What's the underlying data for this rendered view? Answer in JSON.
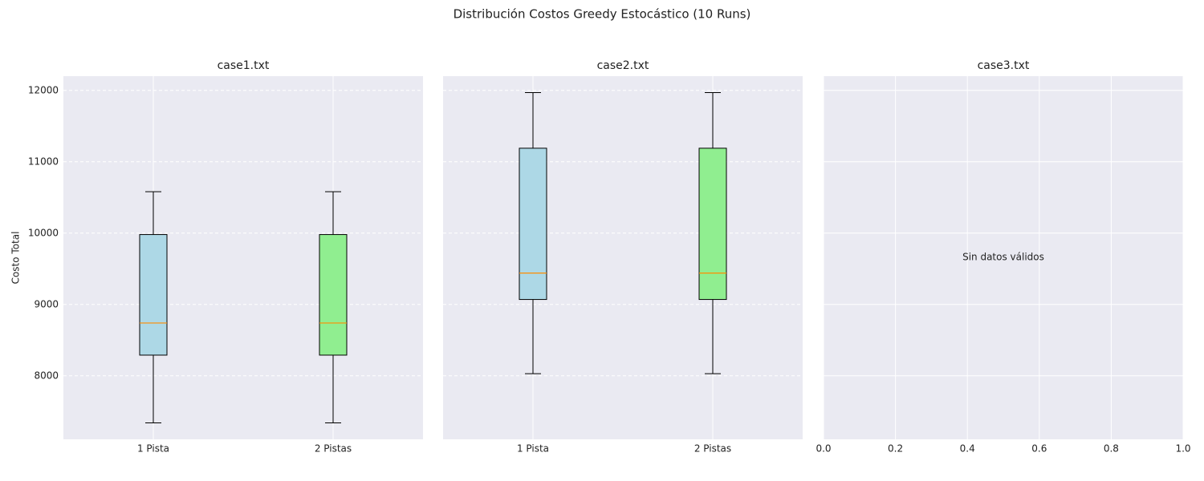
{
  "title": "Distribución Costos Greedy Estocástico (10 Runs)",
  "chart_data": [
    {
      "type": "box",
      "title": "case1.txt",
      "ylabel": "Costo Total",
      "categories": [
        "1 Pista",
        "2 Pistas"
      ],
      "boxes": [
        {
          "color": "#add8e6",
          "whislo": 7340,
          "q1": 8290,
          "med": 8740,
          "q3": 9980,
          "whishi": 10580
        },
        {
          "color": "#90ee90",
          "whislo": 7340,
          "q1": 8290,
          "med": 8740,
          "q3": 9980,
          "whishi": 10580
        }
      ],
      "median_color": "#ff8c00",
      "ylim": [
        7110,
        12200
      ],
      "yticks": [
        8000,
        9000,
        10000,
        11000,
        12000
      ],
      "ytick_labels": true,
      "ygrid_style": "dashed"
    },
    {
      "type": "box",
      "title": "case2.txt",
      "categories": [
        "1 Pista",
        "2 Pistas"
      ],
      "boxes": [
        {
          "color": "#add8e6",
          "whislo": 8030,
          "q1": 9070,
          "med": 9440,
          "q3": 11190,
          "whishi": 11970
        },
        {
          "color": "#90ee90",
          "whislo": 8030,
          "q1": 9070,
          "med": 9440,
          "q3": 11190,
          "whishi": 11970
        }
      ],
      "median_color": "#ff8c00",
      "ylim": [
        7110,
        12200
      ],
      "yticks": [
        8000,
        9000,
        10000,
        11000,
        12000
      ],
      "ytick_labels": false,
      "ygrid_style": "dashed"
    },
    {
      "type": "empty",
      "title": "case3.txt",
      "annotation": "Sin datos válidos",
      "xlim": [
        0,
        1
      ],
      "xticks": [
        {
          "value": 0,
          "label": "0.0"
        },
        0.2,
        0.4,
        0.6,
        0.8,
        {
          "value": 1,
          "label": "1.0"
        }
      ],
      "ylim": [
        7110,
        12200
      ],
      "yticks": [
        8000,
        9000,
        10000,
        11000,
        12000
      ],
      "ytick_labels": false,
      "ygrid_style": "solid"
    }
  ]
}
